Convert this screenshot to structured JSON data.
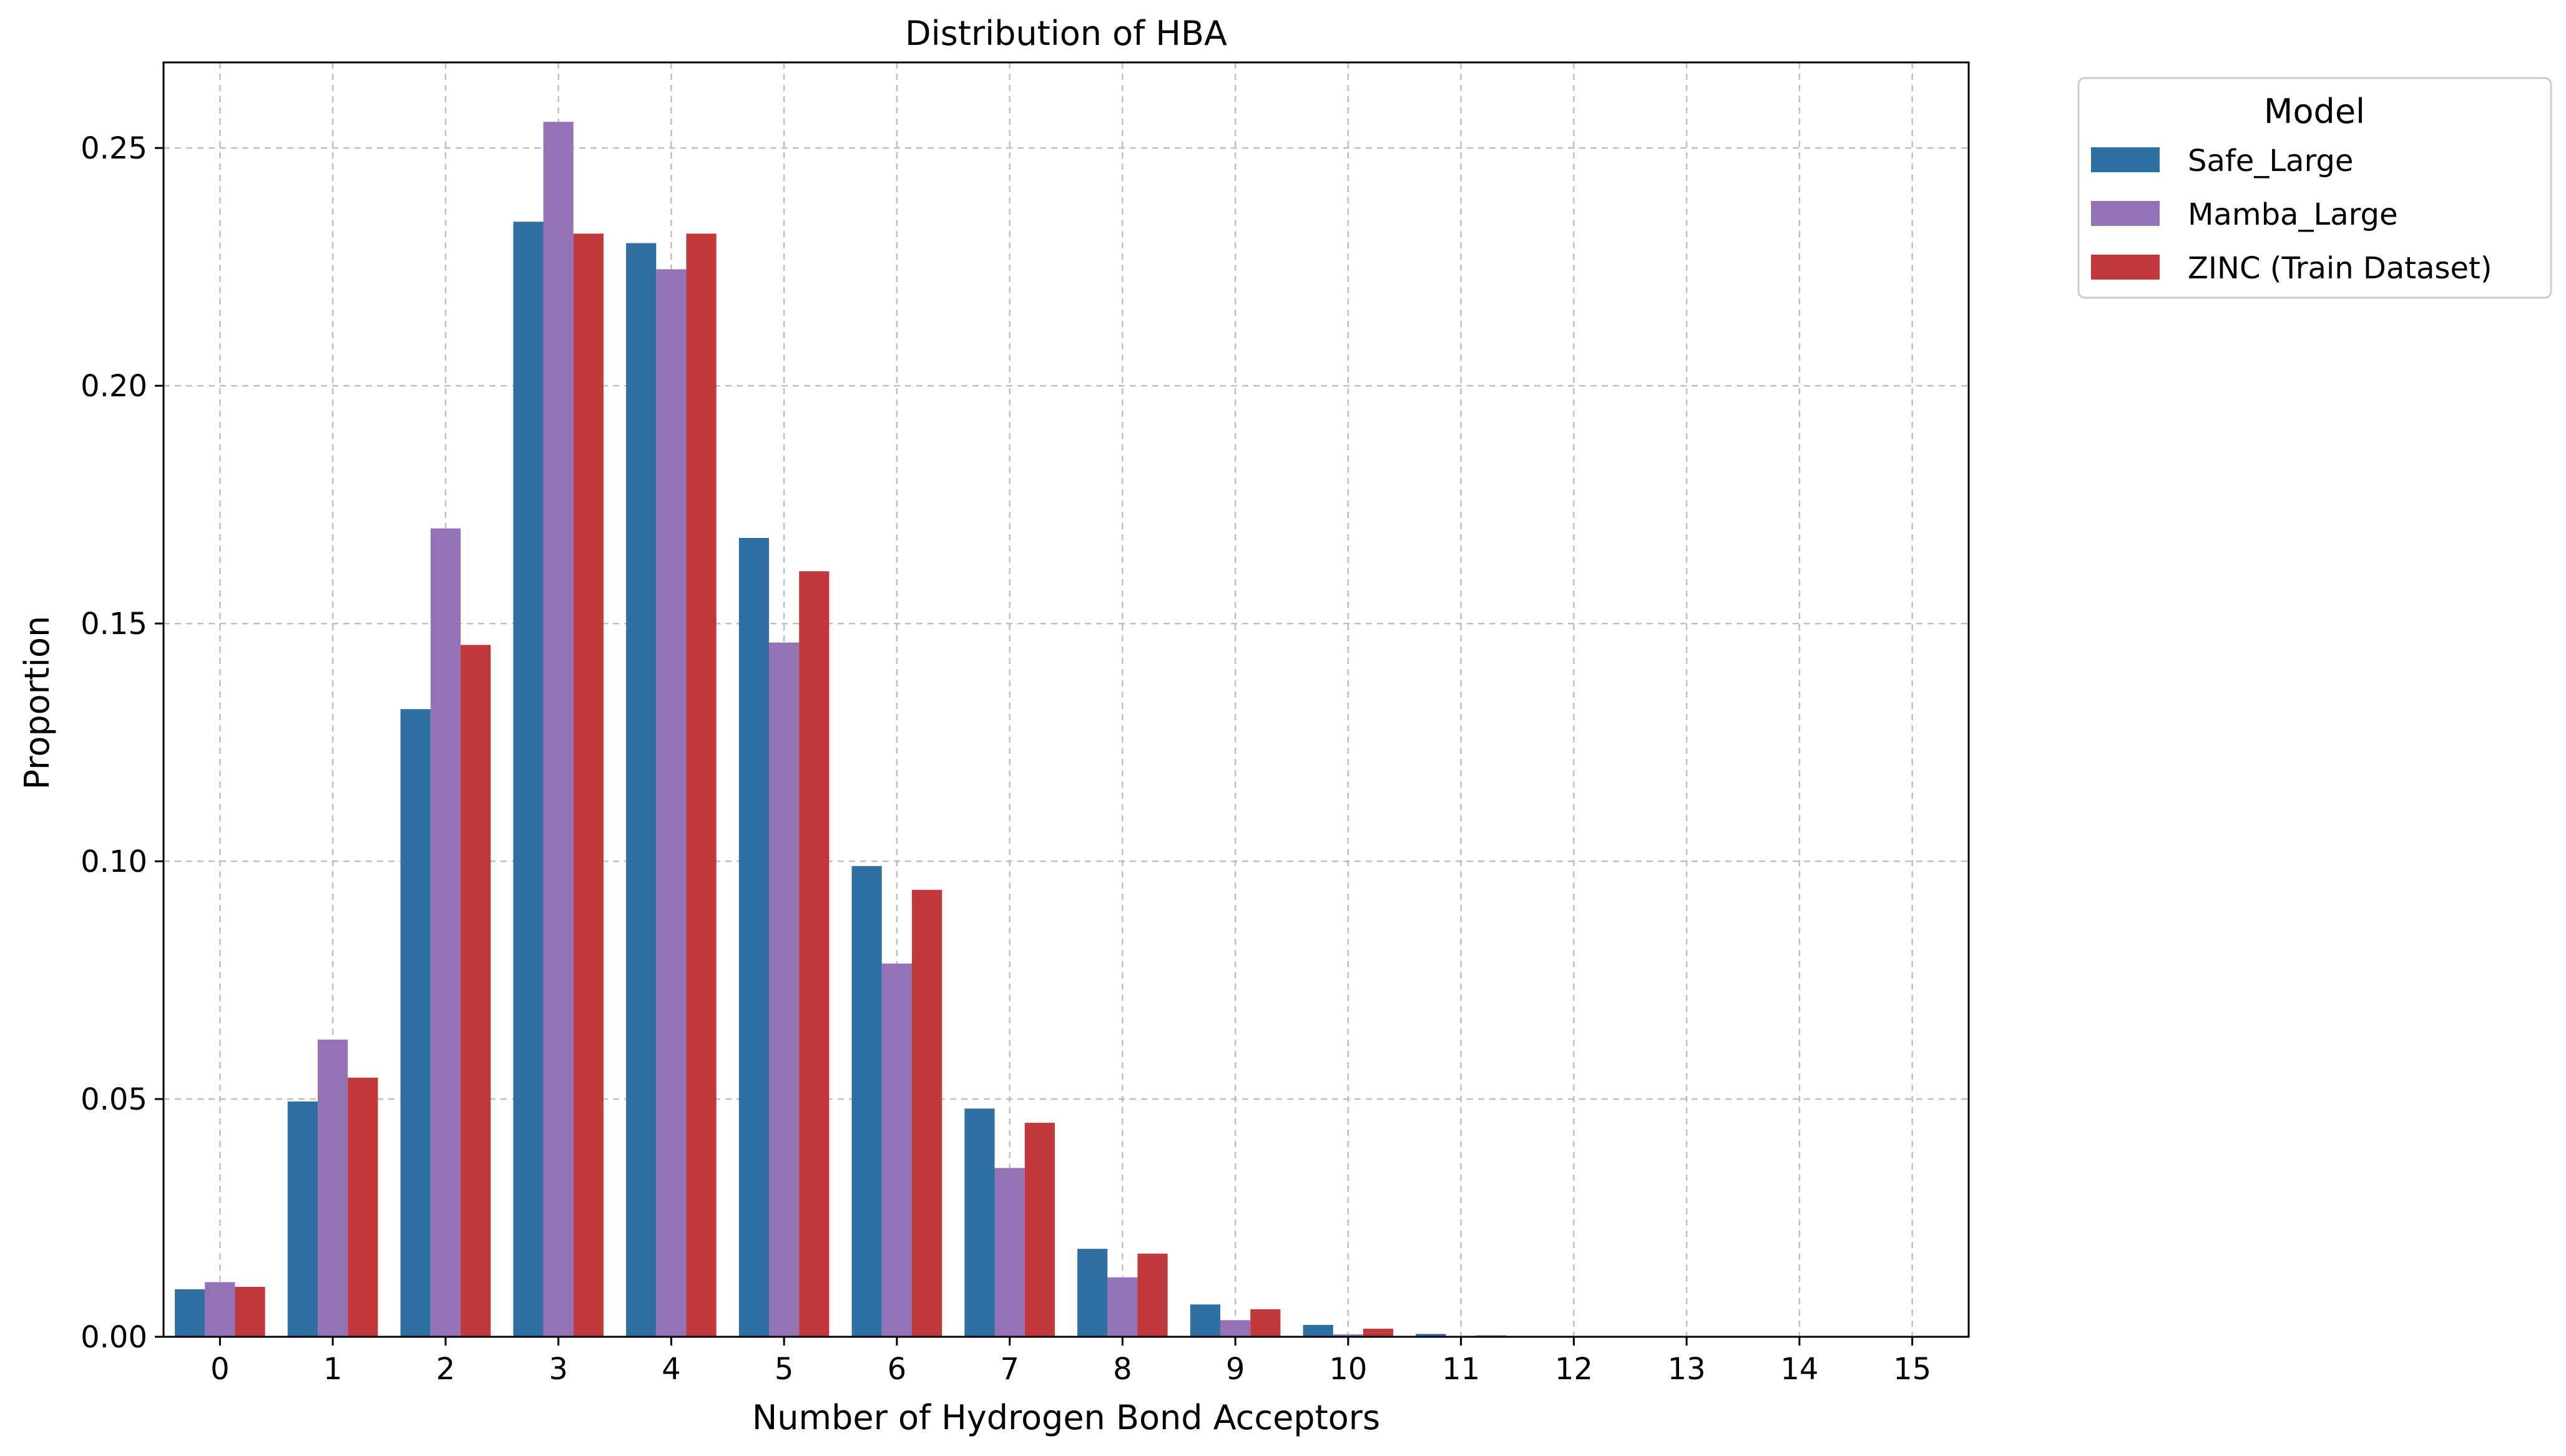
{
  "chart_data": {
    "type": "bar",
    "title": "Distribution of HBA",
    "xlabel": "Number of Hydrogen Bond Acceptors",
    "ylabel": "Proportion",
    "categories": [
      "0",
      "1",
      "2",
      "3",
      "4",
      "5",
      "6",
      "7",
      "8",
      "9",
      "10",
      "11",
      "12",
      "13",
      "14",
      "15"
    ],
    "ylim": [
      0,
      0.268
    ],
    "yticks": [
      "0.00",
      "0.05",
      "0.10",
      "0.15",
      "0.20",
      "0.25"
    ],
    "ytick_values": [
      0,
      0.05,
      0.1,
      0.15,
      0.2,
      0.25
    ],
    "grid": true,
    "legend": {
      "title": "Model",
      "placement": "outside-top-right"
    },
    "series": [
      {
        "name": "Safe_Large",
        "color": "#2f6fa2",
        "values": [
          0.01,
          0.0495,
          0.132,
          0.2345,
          0.23,
          0.168,
          0.099,
          0.048,
          0.0185,
          0.0068,
          0.0025,
          0.0006,
          0.0002,
          0.0001,
          0,
          0
        ]
      },
      {
        "name": "Mamba_Large",
        "color": "#9372b6",
        "values": [
          0.0115,
          0.0625,
          0.17,
          0.2555,
          0.2245,
          0.146,
          0.0785,
          0.0355,
          0.0125,
          0.0035,
          0.0005,
          0.0001,
          0,
          0,
          0,
          0
        ]
      },
      {
        "name": "ZINC (Train Dataset)",
        "color": "#c1393b",
        "values": [
          0.0105,
          0.0545,
          0.1455,
          0.232,
          0.232,
          0.161,
          0.094,
          0.045,
          0.0175,
          0.0058,
          0.0017,
          0.0003,
          0.0001,
          0,
          0,
          0
        ]
      }
    ]
  }
}
